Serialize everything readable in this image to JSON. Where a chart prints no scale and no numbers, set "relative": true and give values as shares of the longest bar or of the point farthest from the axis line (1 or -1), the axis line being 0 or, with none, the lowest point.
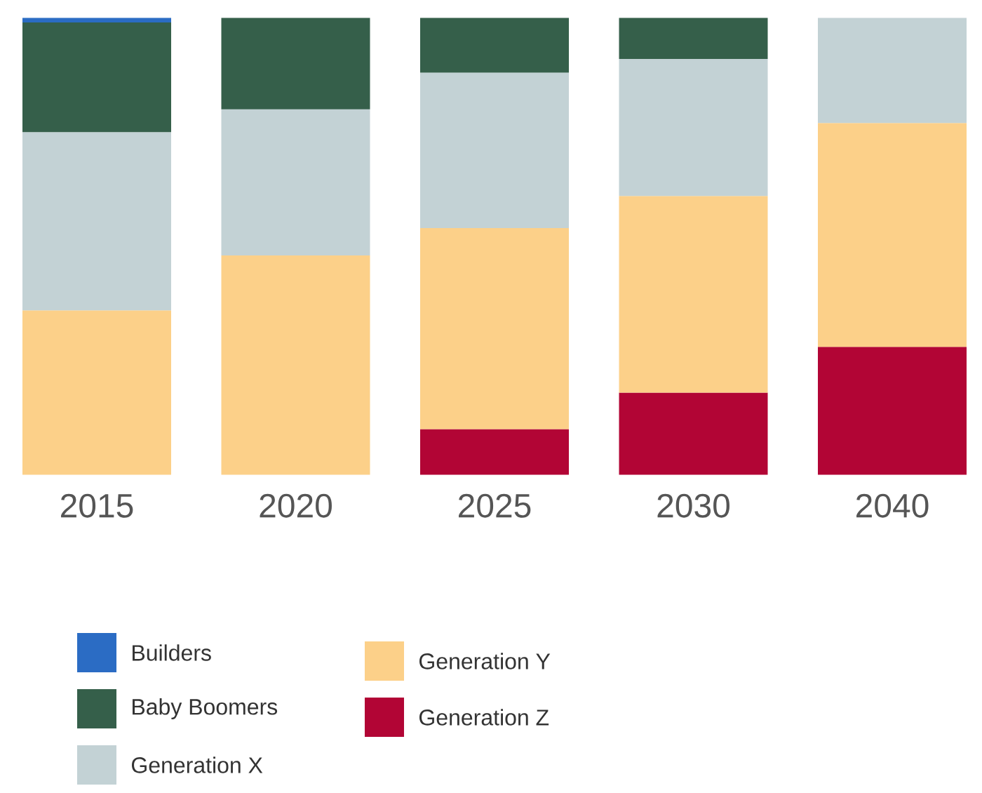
{
  "chart_data": {
    "type": "bar",
    "stacked": true,
    "relative": true,
    "legend": "bottom left",
    "categories": [
      "2015",
      "2020",
      "2025",
      "2030",
      "2040"
    ],
    "series": [
      {
        "name": "Generation Z",
        "color": "#b20535",
        "values": [
          null,
          null,
          0.1,
          0.18,
          0.28
        ]
      },
      {
        "name": "Generation Y",
        "color": "#fcd089",
        "values": [
          0.36,
          0.48,
          0.44,
          0.43,
          0.49
        ]
      },
      {
        "name": "Generation X",
        "color": "#c3d2d5",
        "values": [
          0.39,
          0.32,
          0.34,
          0.3,
          0.23
        ]
      },
      {
        "name": "Baby Boomers",
        "color": "#355f4a",
        "values": [
          0.24,
          0.2,
          0.12,
          0.09,
          null
        ]
      },
      {
        "name": "Builders",
        "color": "#2b6cc4",
        "values": [
          0.01,
          null,
          null,
          null,
          null
        ]
      }
    ]
  }
}
